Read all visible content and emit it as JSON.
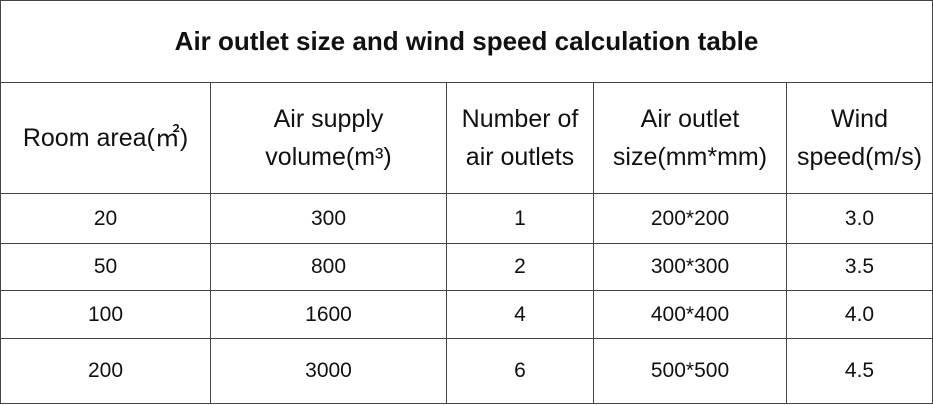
{
  "header": {
    "title": "Air outlet size and wind speed calculation table"
  },
  "table": {
    "columns": [
      "Room area(㎡)",
      "Air supply volume(m³)",
      "Number of air outlets",
      "Air outlet size(mm*mm)",
      "Wind speed(m/s)"
    ],
    "rows": [
      [
        20,
        300,
        1,
        "200*200",
        "3.0"
      ],
      [
        50,
        800,
        2,
        "300*300",
        "3.5"
      ],
      [
        100,
        1600,
        4,
        "400*400",
        "4.0"
      ],
      [
        200,
        3000,
        6,
        "500*500",
        "4.5"
      ]
    ]
  }
}
